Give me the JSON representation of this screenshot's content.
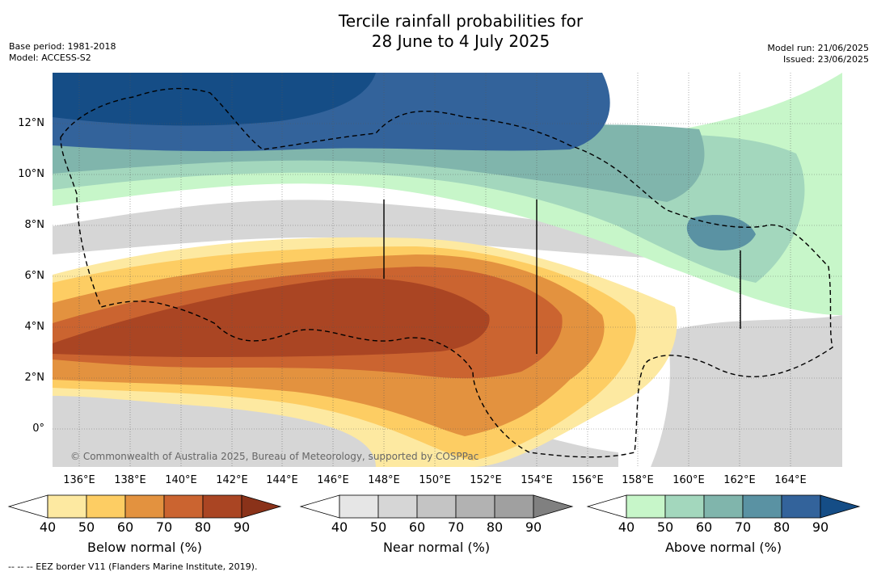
{
  "header": {
    "title_line1": "Tercile rainfall probabilities for",
    "title_line2": "28 June to 4 July 2025",
    "base_period": "Base period: 1981-2018",
    "model": "Model: ACCESS-S2",
    "model_run": "Model run: 21/06/2025",
    "issued": "Issued: 23/06/2025"
  },
  "map": {
    "lat_labels": [
      "12°N",
      "10°N",
      "8°N",
      "6°N",
      "4°N",
      "2°N",
      "0°"
    ],
    "lon_labels": [
      "136°E",
      "138°E",
      "140°E",
      "142°E",
      "144°E",
      "146°E",
      "148°E",
      "150°E",
      "152°E",
      "154°E",
      "156°E",
      "158°E",
      "160°E",
      "162°E",
      "164°E"
    ],
    "credit": "© Commonwealth of Australia 2025, Bureau of Meteorology, supported by COSPPac"
  },
  "colorbars": {
    "ticks": [
      "40",
      "50",
      "60",
      "70",
      "80",
      "90"
    ],
    "below": {
      "label": "Below normal (%)",
      "colors": [
        "#ffffff",
        "#fde9a1",
        "#fdcd63",
        "#e3923f",
        "#cb6430",
        "#aa4523",
        "#8a3219"
      ]
    },
    "near": {
      "label": "Near normal (%)",
      "colors": [
        "#ffffff",
        "#e6e6e6",
        "#d6d6d6",
        "#c4c4c4",
        "#b2b2b2",
        "#a0a0a0",
        "#808080"
      ]
    },
    "above": {
      "label": "Above normal (%)",
      "colors": [
        "#ffffff",
        "#c7f6c9",
        "#a3d7bd",
        "#80b5ac",
        "#5a92a3",
        "#33639b",
        "#154d86"
      ]
    }
  },
  "footer": {
    "eez_note": "--  --  -- EEZ border V11 (Flanders Marine Institute, 2019)."
  }
}
